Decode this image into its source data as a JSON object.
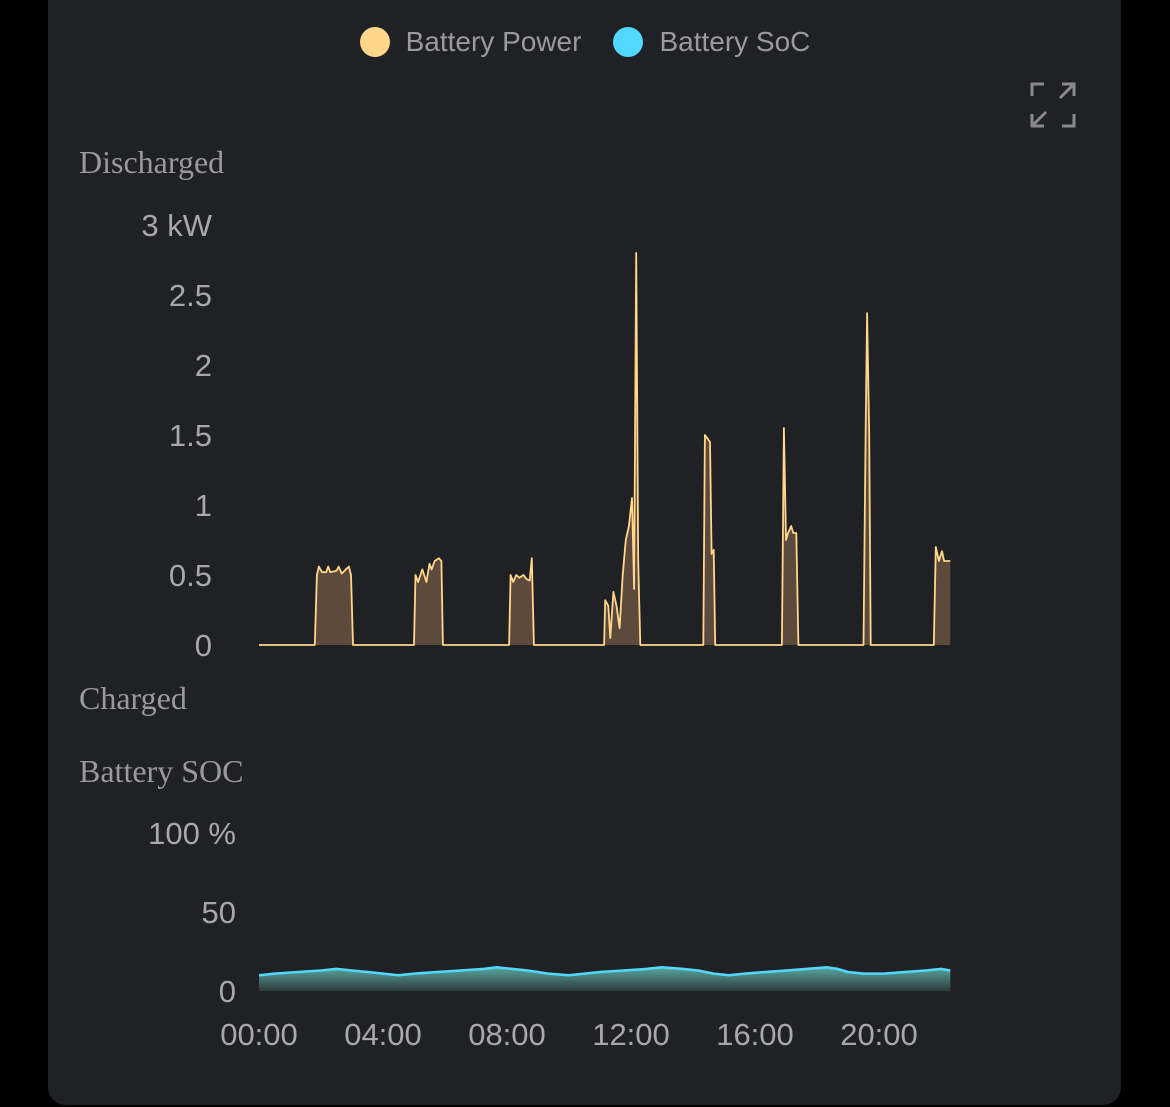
{
  "legend": [
    {
      "label": "Battery Power",
      "color": "#FFD68A"
    },
    {
      "label": "Battery SoC",
      "color": "#52D8FF"
    }
  ],
  "expand_icon": "expand-icon",
  "chart_data": [
    {
      "type": "area",
      "series_name": "Battery Power",
      "top_label": "Discharged",
      "bottom_label": "Charged",
      "unit": "kW",
      "ylim": [
        0,
        3
      ],
      "yticks": [
        "3 kW",
        "2.5",
        "2",
        "1.5",
        "1",
        "0.5",
        "0"
      ],
      "xlim": [
        "00:00",
        "22:18"
      ],
      "line_color": "#FFD68A",
      "fill_color": "#5C4A3D",
      "points": [
        [
          "00:00",
          0
        ],
        [
          "01:48",
          0
        ],
        [
          "01:52",
          0.5
        ],
        [
          "01:56",
          0.56
        ],
        [
          "02:02",
          0.52
        ],
        [
          "02:10",
          0.52
        ],
        [
          "02:14",
          0.56
        ],
        [
          "02:18",
          0.52
        ],
        [
          "02:30",
          0.53
        ],
        [
          "02:34",
          0.56
        ],
        [
          "02:40",
          0.51
        ],
        [
          "02:48",
          0.54
        ],
        [
          "02:54",
          0.56
        ],
        [
          "02:58",
          0.5
        ],
        [
          "03:02",
          0
        ],
        [
          "05:00",
          0
        ],
        [
          "05:03",
          0.5
        ],
        [
          "05:08",
          0.45
        ],
        [
          "05:16",
          0.54
        ],
        [
          "05:24",
          0.45
        ],
        [
          "05:30",
          0.58
        ],
        [
          "05:34",
          0.54
        ],
        [
          "05:40",
          0.6
        ],
        [
          "05:48",
          0.62
        ],
        [
          "05:53",
          0.6
        ],
        [
          "05:56",
          0
        ],
        [
          "08:04",
          0
        ],
        [
          "08:07",
          0.5
        ],
        [
          "08:12",
          0.45
        ],
        [
          "08:18",
          0.5
        ],
        [
          "08:24",
          0.48
        ],
        [
          "08:32",
          0.5
        ],
        [
          "08:38",
          0.47
        ],
        [
          "08:44",
          0.46
        ],
        [
          "08:48",
          0.62
        ],
        [
          "08:52",
          0
        ],
        [
          "11:08",
          0
        ],
        [
          "11:10",
          0.32
        ],
        [
          "11:16",
          0.28
        ],
        [
          "11:20",
          0.05
        ],
        [
          "11:26",
          0.38
        ],
        [
          "11:32",
          0.28
        ],
        [
          "11:38",
          0.12
        ],
        [
          "11:44",
          0.5
        ],
        [
          "11:50",
          0.75
        ],
        [
          "11:56",
          0.85
        ],
        [
          "12:02",
          1.05
        ],
        [
          "12:06",
          0.4
        ],
        [
          "12:10",
          2.8
        ],
        [
          "12:14",
          0.6
        ],
        [
          "12:18",
          0
        ],
        [
          "14:20",
          0
        ],
        [
          "14:23",
          1.5
        ],
        [
          "14:27",
          1.48
        ],
        [
          "14:33",
          1.45
        ],
        [
          "14:36",
          0.65
        ],
        [
          "14:40",
          0.68
        ],
        [
          "14:43",
          0
        ],
        [
          "16:52",
          0
        ],
        [
          "16:56",
          1.55
        ],
        [
          "17:00",
          0.75
        ],
        [
          "17:04",
          0.8
        ],
        [
          "17:10",
          0.85
        ],
        [
          "17:14",
          0.8
        ],
        [
          "17:20",
          0.8
        ],
        [
          "17:24",
          0
        ],
        [
          "19:30",
          0
        ],
        [
          "19:34",
          1.5
        ],
        [
          "19:37",
          2.37
        ],
        [
          "19:41",
          1.5
        ],
        [
          "19:44",
          0
        ],
        [
          "21:46",
          0
        ],
        [
          "21:50",
          0.7
        ],
        [
          "21:56",
          0.6
        ],
        [
          "22:02",
          0.67
        ],
        [
          "22:06",
          0.6
        ],
        [
          "22:18",
          0.6
        ]
      ]
    },
    {
      "type": "area",
      "series_name": "Battery SoC",
      "top_label": "Battery SOC",
      "unit": "%",
      "ylim": [
        0,
        100
      ],
      "yticks": [
        "100 %",
        "50",
        "0"
      ],
      "xticks": [
        "00:00",
        "04:00",
        "08:00",
        "12:00",
        "16:00",
        "20:00"
      ],
      "xlim": [
        "00:00",
        "22:18"
      ],
      "line_color": "#52D8FF",
      "fill_color": "#4F8A86",
      "points": [
        [
          "00:00",
          10
        ],
        [
          "00:30",
          11
        ],
        [
          "01:15",
          12
        ],
        [
          "02:00",
          13
        ],
        [
          "02:30",
          14
        ],
        [
          "03:00",
          13
        ],
        [
          "03:30",
          12
        ],
        [
          "04:00",
          11
        ],
        [
          "04:30",
          10
        ],
        [
          "05:00",
          11
        ],
        [
          "05:45",
          12
        ],
        [
          "06:30",
          13
        ],
        [
          "07:15",
          14
        ],
        [
          "07:40",
          15
        ],
        [
          "08:10",
          14
        ],
        [
          "08:40",
          13
        ],
        [
          "09:20",
          11
        ],
        [
          "10:00",
          10
        ],
        [
          "10:30",
          11
        ],
        [
          "11:00",
          12
        ],
        [
          "11:45",
          13
        ],
        [
          "12:30",
          14
        ],
        [
          "13:00",
          15
        ],
        [
          "13:40",
          14
        ],
        [
          "14:10",
          13
        ],
        [
          "14:40",
          11
        ],
        [
          "15:10",
          10
        ],
        [
          "15:40",
          11
        ],
        [
          "16:20",
          12
        ],
        [
          "17:00",
          13
        ],
        [
          "17:40",
          14
        ],
        [
          "18:20",
          15
        ],
        [
          "18:40",
          14
        ],
        [
          "19:00",
          12
        ],
        [
          "19:30",
          11
        ],
        [
          "20:10",
          11
        ],
        [
          "20:50",
          12
        ],
        [
          "21:30",
          13
        ],
        [
          "22:00",
          14
        ],
        [
          "22:18",
          13
        ]
      ]
    }
  ]
}
